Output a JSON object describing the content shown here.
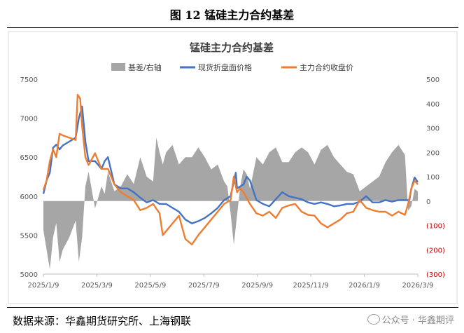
{
  "figure_label": "图 12 锰硅主力合约基差",
  "source": "数据来源：华鑫期货研究所、上海钢联",
  "watermark": "公众号 · 华鑫期评",
  "chart_data": {
    "type": "bar+line",
    "title": "锰硅主力合约基差",
    "legend": [
      {
        "name": "基差/右轴",
        "color": "#a6a6a6",
        "kind": "bar"
      },
      {
        "name": "现货折盘面价格",
        "color": "#4472c4",
        "kind": "line"
      },
      {
        "name": "主力合约收盘价",
        "color": "#ed7d31",
        "kind": "line"
      }
    ],
    "legend_position": "top-center",
    "x_ticks": [
      "2025/1/9",
      "2025/3/9",
      "2025/5/9",
      "2025/7/9",
      "2025/9/9",
      "2025/11/9",
      "2026/1/9",
      "2026/3/9"
    ],
    "y_left": {
      "min": 5000,
      "max": 7500,
      "ticks": [
        "5000",
        "5500",
        "6000",
        "6500",
        "7000",
        "7500"
      ]
    },
    "y_right": {
      "min": -300,
      "max": 500,
      "ticks": [
        {
          "value": 500,
          "label": "500"
        },
        {
          "value": 400,
          "label": "400"
        },
        {
          "value": 300,
          "label": "300"
        },
        {
          "value": 200,
          "label": "200"
        },
        {
          "value": 100,
          "label": "100"
        },
        {
          "value": 0,
          "label": "0"
        },
        {
          "value": -100,
          "label": "(100)"
        },
        {
          "value": -200,
          "label": "(200)"
        },
        {
          "value": -300,
          "label": "(300)"
        }
      ],
      "negative_color": "#c00000"
    },
    "grid": false,
    "x_index_range": [
      0,
      58
    ],
    "spot_price": [
      [
        0,
        6030
      ],
      [
        0.5,
        6200
      ],
      [
        1,
        6300
      ],
      [
        1.5,
        6620
      ],
      [
        2,
        6660
      ],
      [
        2.5,
        6600
      ],
      [
        3,
        6650
      ],
      [
        4,
        6700
      ],
      [
        5,
        6750
      ],
      [
        5.5,
        7000
      ],
      [
        6,
        7150
      ],
      [
        6.5,
        6700
      ],
      [
        7,
        6450
      ],
      [
        8,
        6450
      ],
      [
        9,
        6350
      ],
      [
        9.5,
        6450
      ],
      [
        10,
        6500
      ],
      [
        11,
        6150
      ],
      [
        12,
        6100
      ],
      [
        13,
        6100
      ],
      [
        14,
        6050
      ],
      [
        15,
        5980
      ],
      [
        16,
        5920
      ],
      [
        17,
        5950
      ],
      [
        18,
        5900
      ],
      [
        19,
        5900
      ],
      [
        20,
        5850
      ],
      [
        21,
        5800
      ],
      [
        22,
        5700
      ],
      [
        23,
        5650
      ],
      [
        24,
        5680
      ],
      [
        25,
        5720
      ],
      [
        26,
        5780
      ],
      [
        27,
        5850
      ],
      [
        28,
        5950
      ],
      [
        29,
        6000
      ],
      [
        29.8,
        6300
      ],
      [
        30,
        6100
      ],
      [
        31,
        6150
      ],
      [
        31.5,
        6250
      ],
      [
        32,
        6200
      ],
      [
        33,
        5950
      ],
      [
        34,
        5900
      ],
      [
        35,
        5870
      ],
      [
        36,
        5960
      ],
      [
        37,
        6050
      ],
      [
        38,
        6000
      ],
      [
        39,
        5980
      ],
      [
        40,
        5960
      ],
      [
        41,
        5920
      ],
      [
        42,
        5900
      ],
      [
        43,
        5920
      ],
      [
        44,
        5900
      ],
      [
        45,
        5870
      ],
      [
        46,
        5880
      ],
      [
        47,
        5900
      ],
      [
        48,
        5900
      ],
      [
        49,
        5930
      ],
      [
        50,
        6000
      ],
      [
        51,
        5920
      ],
      [
        52,
        5920
      ],
      [
        53,
        5950
      ],
      [
        54,
        5930
      ],
      [
        55,
        5950
      ],
      [
        56,
        5950
      ],
      [
        56.7,
        5950
      ],
      [
        57,
        6100
      ],
      [
        57.5,
        6240
      ],
      [
        58,
        6180
      ]
    ],
    "futures_close": [
      [
        0,
        6080
      ],
      [
        0.5,
        6200
      ],
      [
        1,
        6450
      ],
      [
        1.5,
        6600
      ],
      [
        2,
        6500
      ],
      [
        2.5,
        6800
      ],
      [
        3,
        6780
      ],
      [
        4,
        6750
      ],
      [
        5,
        6720
      ],
      [
        5.3,
        7300
      ],
      [
        5.7,
        7250
      ],
      [
        6,
        6900
      ],
      [
        6.5,
        6500
      ],
      [
        7,
        6400
      ],
      [
        8,
        6550
      ],
      [
        9,
        6350
      ],
      [
        10,
        6350
      ],
      [
        11,
        6150
      ],
      [
        12,
        6050
      ],
      [
        13,
        6000
      ],
      [
        14,
        5950
      ],
      [
        15,
        5820
      ],
      [
        16,
        5850
      ],
      [
        17,
        5900
      ],
      [
        18,
        5780
      ],
      [
        18.5,
        5500
      ],
      [
        19,
        5550
      ],
      [
        20,
        5650
      ],
      [
        21,
        5750
      ],
      [
        21.5,
        5600
      ],
      [
        22,
        5450
      ],
      [
        23,
        5380
      ],
      [
        24,
        5500
      ],
      [
        25,
        5600
      ],
      [
        26,
        5700
      ],
      [
        27,
        5800
      ],
      [
        28,
        5900
      ],
      [
        29,
        5950
      ],
      [
        29.5,
        6250
      ],
      [
        30,
        6050
      ],
      [
        30.5,
        6100
      ],
      [
        31,
        6050
      ],
      [
        32,
        5900
      ],
      [
        33,
        5780
      ],
      [
        34,
        5750
      ],
      [
        35,
        5800
      ],
      [
        36,
        5720
      ],
      [
        37,
        5850
      ],
      [
        38,
        5880
      ],
      [
        39,
        5900
      ],
      [
        40,
        5800
      ],
      [
        41,
        5760
      ],
      [
        42,
        5750
      ],
      [
        43,
        5650
      ],
      [
        44,
        5600
      ],
      [
        45,
        5650
      ],
      [
        46,
        5700
      ],
      [
        47,
        5780
      ],
      [
        48,
        5800
      ],
      [
        49,
        5950
      ],
      [
        50,
        5850
      ],
      [
        51,
        5820
      ],
      [
        52,
        5800
      ],
      [
        53,
        5800
      ],
      [
        54,
        5750
      ],
      [
        55,
        5800
      ],
      [
        56,
        5760
      ],
      [
        56.5,
        5900
      ],
      [
        57,
        6100
      ],
      [
        57.5,
        6200
      ],
      [
        58,
        6150
      ]
    ],
    "basis": [
      [
        0,
        -120
      ],
      [
        0.5,
        -200
      ],
      [
        1,
        -280
      ],
      [
        1.5,
        -150
      ],
      [
        2,
        -90
      ],
      [
        2.5,
        -250
      ],
      [
        3,
        -200
      ],
      [
        4,
        -150
      ],
      [
        5,
        -80
      ],
      [
        5.5,
        -250
      ],
      [
        6,
        -150
      ],
      [
        6.5,
        60
      ],
      [
        7,
        120
      ],
      [
        8,
        -30
      ],
      [
        9,
        60
      ],
      [
        9.5,
        30
      ],
      [
        10,
        120
      ],
      [
        11,
        40
      ],
      [
        12,
        60
      ],
      [
        13,
        110
      ],
      [
        14,
        70
      ],
      [
        15,
        180
      ],
      [
        16,
        100
      ],
      [
        17,
        80
      ],
      [
        17.5,
        260
      ],
      [
        18,
        200
      ],
      [
        18.5,
        150
      ],
      [
        19,
        200
      ],
      [
        20,
        230
      ],
      [
        21,
        150
      ],
      [
        22,
        180
      ],
      [
        23,
        180
      ],
      [
        24,
        220
      ],
      [
        25,
        180
      ],
      [
        26,
        130
      ],
      [
        27,
        150
      ],
      [
        28,
        80
      ],
      [
        28.5,
        60
      ],
      [
        29,
        -50
      ],
      [
        29.5,
        -180
      ],
      [
        30,
        -60
      ],
      [
        30.5,
        60
      ],
      [
        31,
        130
      ],
      [
        31.5,
        110
      ],
      [
        32,
        50
      ],
      [
        33,
        180
      ],
      [
        34,
        150
      ],
      [
        35,
        200
      ],
      [
        36,
        220
      ],
      [
        37,
        160
      ],
      [
        38,
        160
      ],
      [
        39,
        200
      ],
      [
        40,
        220
      ],
      [
        41,
        200
      ],
      [
        42,
        150
      ],
      [
        43,
        210
      ],
      [
        44,
        230
      ],
      [
        45,
        180
      ],
      [
        46,
        150
      ],
      [
        47,
        120
      ],
      [
        48,
        110
      ],
      [
        49,
        40
      ],
      [
        50,
        60
      ],
      [
        51,
        80
      ],
      [
        52,
        100
      ],
      [
        53,
        160
      ],
      [
        54,
        200
      ],
      [
        55,
        230
      ],
      [
        56,
        190
      ],
      [
        56.5,
        -40
      ],
      [
        57,
        -20
      ],
      [
        57.5,
        50
      ],
      [
        58,
        40
      ]
    ]
  }
}
